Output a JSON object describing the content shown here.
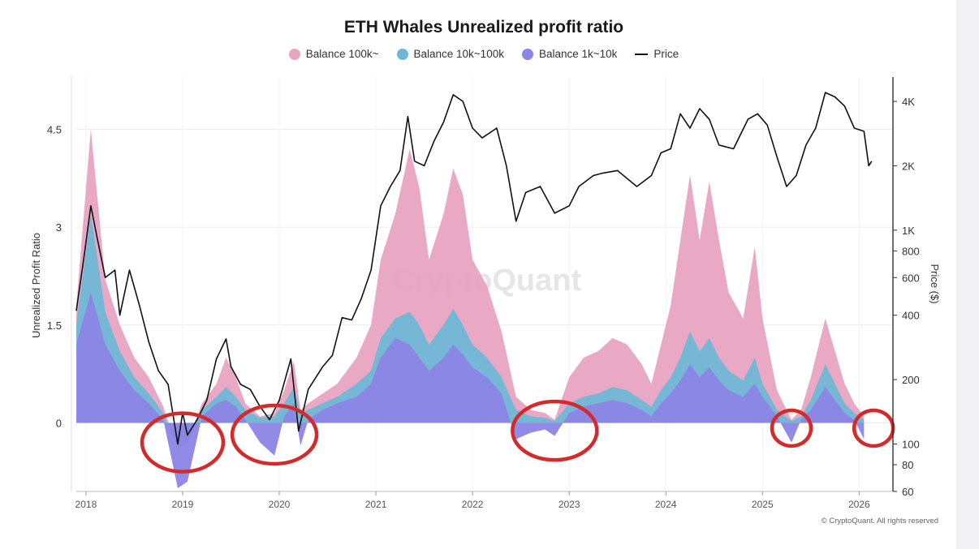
{
  "chart_data": {
    "type": "area",
    "title": "ETH Whales Unrealized profit ratio",
    "watermark": "CryptoQuant",
    "copyright": "© CryptoQuant. All rights reserved",
    "ylabel": "Unrealized Profit Ratio",
    "y2label": "Price ($)",
    "ylim": [
      -1.05,
      5.3
    ],
    "y2_scale": "log",
    "y2lim": [
      60,
      5200
    ],
    "x_ticks": [
      "2018",
      "2019",
      "2020",
      "2021",
      "2022",
      "2023",
      "2024",
      "2025",
      "2026"
    ],
    "y_ticks": [
      "0",
      "1.5",
      "3",
      "4.5"
    ],
    "y2_ticks": [
      "60",
      "80",
      "100",
      "200",
      "400",
      "600",
      "800",
      "1K",
      "2K",
      "4K"
    ],
    "grid": true,
    "legend_position": "top",
    "colors": {
      "balance_100k": "#e8a4c2",
      "balance_10k_100k": "#6fb7d6",
      "balance_1k_10k": "#8c84e6",
      "price": "#111111",
      "highlight_circle": "#d42a2a"
    },
    "series": [
      {
        "name": "Balance 100k~",
        "points": [
          [
            2017.9,
            1.8
          ],
          [
            2018.05,
            4.5
          ],
          [
            2018.2,
            2.2
          ],
          [
            2018.35,
            1.5
          ],
          [
            2018.5,
            1.0
          ],
          [
            2018.65,
            0.7
          ],
          [
            2018.8,
            0.25
          ],
          [
            2018.95,
            -0.4
          ],
          [
            2019.05,
            -0.3
          ],
          [
            2019.2,
            0.3
          ],
          [
            2019.35,
            0.6
          ],
          [
            2019.45,
            1.0
          ],
          [
            2019.55,
            0.7
          ],
          [
            2019.65,
            0.3
          ],
          [
            2019.8,
            0.1
          ],
          [
            2019.95,
            0.15
          ],
          [
            2020.05,
            0.5
          ],
          [
            2020.15,
            0.95
          ],
          [
            2020.22,
            0.2
          ],
          [
            2020.3,
            0.3
          ],
          [
            2020.45,
            0.45
          ],
          [
            2020.6,
            0.6
          ],
          [
            2020.8,
            1.0
          ],
          [
            2020.95,
            1.5
          ],
          [
            2021.05,
            2.5
          ],
          [
            2021.2,
            3.2
          ],
          [
            2021.35,
            4.2
          ],
          [
            2021.45,
            3.6
          ],
          [
            2021.55,
            2.5
          ],
          [
            2021.7,
            3.2
          ],
          [
            2021.8,
            3.9
          ],
          [
            2021.9,
            3.5
          ],
          [
            2022.0,
            2.5
          ],
          [
            2022.15,
            2.1
          ],
          [
            2022.3,
            1.4
          ],
          [
            2022.45,
            0.4
          ],
          [
            2022.6,
            0.2
          ],
          [
            2022.75,
            0.15
          ],
          [
            2022.85,
            0.05
          ],
          [
            2023.0,
            0.7
          ],
          [
            2023.15,
            1.0
          ],
          [
            2023.3,
            1.1
          ],
          [
            2023.45,
            1.3
          ],
          [
            2023.6,
            1.2
          ],
          [
            2023.75,
            0.9
          ],
          [
            2023.85,
            0.6
          ],
          [
            2023.95,
            1.2
          ],
          [
            2024.05,
            1.8
          ],
          [
            2024.15,
            2.8
          ],
          [
            2024.25,
            3.8
          ],
          [
            2024.35,
            2.8
          ],
          [
            2024.45,
            3.7
          ],
          [
            2024.55,
            2.8
          ],
          [
            2024.65,
            2.0
          ],
          [
            2024.8,
            1.6
          ],
          [
            2024.92,
            2.7
          ],
          [
            2025.0,
            1.6
          ],
          [
            2025.15,
            0.5
          ],
          [
            2025.3,
            0.05
          ],
          [
            2025.4,
            0.2
          ],
          [
            2025.5,
            0.7
          ],
          [
            2025.65,
            1.6
          ],
          [
            2025.75,
            1.1
          ],
          [
            2025.85,
            0.6
          ],
          [
            2025.95,
            0.3
          ],
          [
            2026.05,
            0.1
          ]
        ]
      },
      {
        "name": "Balance 10k~100k",
        "points": [
          [
            2017.9,
            1.5
          ],
          [
            2018.05,
            3.2
          ],
          [
            2018.2,
            1.7
          ],
          [
            2018.35,
            1.1
          ],
          [
            2018.5,
            0.7
          ],
          [
            2018.65,
            0.45
          ],
          [
            2018.8,
            0.15
          ],
          [
            2018.95,
            -0.4
          ],
          [
            2019.05,
            -0.3
          ],
          [
            2019.2,
            0.2
          ],
          [
            2019.35,
            0.4
          ],
          [
            2019.45,
            0.55
          ],
          [
            2019.55,
            0.4
          ],
          [
            2019.65,
            0.2
          ],
          [
            2019.8,
            0.08
          ],
          [
            2019.95,
            0.1
          ],
          [
            2020.05,
            0.3
          ],
          [
            2020.15,
            0.55
          ],
          [
            2020.22,
            0.15
          ],
          [
            2020.3,
            0.2
          ],
          [
            2020.45,
            0.3
          ],
          [
            2020.6,
            0.4
          ],
          [
            2020.8,
            0.6
          ],
          [
            2020.95,
            0.8
          ],
          [
            2021.05,
            1.3
          ],
          [
            2021.2,
            1.6
          ],
          [
            2021.35,
            1.7
          ],
          [
            2021.45,
            1.5
          ],
          [
            2021.55,
            1.2
          ],
          [
            2021.7,
            1.5
          ],
          [
            2021.8,
            1.75
          ],
          [
            2021.9,
            1.5
          ],
          [
            2022.0,
            1.2
          ],
          [
            2022.15,
            1.0
          ],
          [
            2022.3,
            0.7
          ],
          [
            2022.45,
            0.2
          ],
          [
            2022.6,
            0.1
          ],
          [
            2022.75,
            0.08
          ],
          [
            2022.85,
            0.03
          ],
          [
            2023.0,
            0.3
          ],
          [
            2023.15,
            0.4
          ],
          [
            2023.3,
            0.45
          ],
          [
            2023.45,
            0.55
          ],
          [
            2023.6,
            0.5
          ],
          [
            2023.75,
            0.35
          ],
          [
            2023.85,
            0.25
          ],
          [
            2023.95,
            0.5
          ],
          [
            2024.05,
            0.7
          ],
          [
            2024.15,
            1.0
          ],
          [
            2024.25,
            1.4
          ],
          [
            2024.35,
            1.1
          ],
          [
            2024.45,
            1.3
          ],
          [
            2024.55,
            1.0
          ],
          [
            2024.65,
            0.8
          ],
          [
            2024.8,
            0.65
          ],
          [
            2024.92,
            1.0
          ],
          [
            2025.0,
            0.6
          ],
          [
            2025.15,
            0.2
          ],
          [
            2025.3,
            0.03
          ],
          [
            2025.4,
            0.1
          ],
          [
            2025.5,
            0.35
          ],
          [
            2025.65,
            0.9
          ],
          [
            2025.75,
            0.6
          ],
          [
            2025.85,
            0.3
          ],
          [
            2025.95,
            0.15
          ],
          [
            2026.05,
            0.05
          ]
        ]
      },
      {
        "name": "Balance 1k~10k",
        "points": [
          [
            2017.9,
            1.2
          ],
          [
            2018.05,
            2.0
          ],
          [
            2018.2,
            1.2
          ],
          [
            2018.35,
            0.8
          ],
          [
            2018.5,
            0.5
          ],
          [
            2018.65,
            0.3
          ],
          [
            2018.8,
            0.05
          ],
          [
            2018.95,
            -1.0
          ],
          [
            2019.05,
            -0.9
          ],
          [
            2019.2,
            0.1
          ],
          [
            2019.35,
            0.3
          ],
          [
            2019.45,
            0.35
          ],
          [
            2019.55,
            0.25
          ],
          [
            2019.65,
            0.05
          ],
          [
            2019.8,
            -0.3
          ],
          [
            2019.95,
            -0.5
          ],
          [
            2020.05,
            0.1
          ],
          [
            2020.15,
            0.3
          ],
          [
            2020.22,
            -0.35
          ],
          [
            2020.3,
            0.05
          ],
          [
            2020.45,
            0.2
          ],
          [
            2020.6,
            0.3
          ],
          [
            2020.8,
            0.4
          ],
          [
            2020.95,
            0.6
          ],
          [
            2021.05,
            1.0
          ],
          [
            2021.2,
            1.3
          ],
          [
            2021.35,
            1.2
          ],
          [
            2021.45,
            1.0
          ],
          [
            2021.55,
            0.8
          ],
          [
            2021.7,
            1.0
          ],
          [
            2021.8,
            1.2
          ],
          [
            2021.9,
            1.05
          ],
          [
            2022.0,
            0.85
          ],
          [
            2022.15,
            0.7
          ],
          [
            2022.3,
            0.45
          ],
          [
            2022.45,
            -0.25
          ],
          [
            2022.6,
            -0.15
          ],
          [
            2022.75,
            -0.1
          ],
          [
            2022.85,
            -0.2
          ],
          [
            2023.0,
            0.15
          ],
          [
            2023.15,
            0.25
          ],
          [
            2023.3,
            0.3
          ],
          [
            2023.45,
            0.35
          ],
          [
            2023.6,
            0.3
          ],
          [
            2023.75,
            0.2
          ],
          [
            2023.85,
            0.1
          ],
          [
            2023.95,
            0.3
          ],
          [
            2024.05,
            0.45
          ],
          [
            2024.15,
            0.65
          ],
          [
            2024.25,
            0.9
          ],
          [
            2024.35,
            0.7
          ],
          [
            2024.45,
            0.85
          ],
          [
            2024.55,
            0.65
          ],
          [
            2024.65,
            0.5
          ],
          [
            2024.8,
            0.4
          ],
          [
            2024.92,
            0.6
          ],
          [
            2025.0,
            0.4
          ],
          [
            2025.15,
            0.1
          ],
          [
            2025.3,
            -0.3
          ],
          [
            2025.4,
            0.05
          ],
          [
            2025.5,
            0.2
          ],
          [
            2025.65,
            0.55
          ],
          [
            2025.75,
            0.35
          ],
          [
            2025.85,
            0.15
          ],
          [
            2025.95,
            0.05
          ],
          [
            2026.05,
            -0.25
          ]
        ]
      },
      {
        "name": "Price",
        "axis": "right",
        "points": [
          [
            2017.9,
            420
          ],
          [
            2017.98,
            750
          ],
          [
            2018.05,
            1300
          ],
          [
            2018.12,
            900
          ],
          [
            2018.2,
            600
          ],
          [
            2018.3,
            650
          ],
          [
            2018.35,
            400
          ],
          [
            2018.45,
            650
          ],
          [
            2018.55,
            450
          ],
          [
            2018.65,
            300
          ],
          [
            2018.75,
            220
          ],
          [
            2018.85,
            190
          ],
          [
            2018.95,
            100
          ],
          [
            2019.0,
            140
          ],
          [
            2019.05,
            110
          ],
          [
            2019.15,
            130
          ],
          [
            2019.25,
            160
          ],
          [
            2019.35,
            250
          ],
          [
            2019.45,
            310
          ],
          [
            2019.5,
            230
          ],
          [
            2019.6,
            190
          ],
          [
            2019.7,
            180
          ],
          [
            2019.8,
            150
          ],
          [
            2019.9,
            130
          ],
          [
            2020.0,
            160
          ],
          [
            2020.12,
            250
          ],
          [
            2020.2,
            115
          ],
          [
            2020.3,
            180
          ],
          [
            2020.45,
            230
          ],
          [
            2020.55,
            260
          ],
          [
            2020.65,
            390
          ],
          [
            2020.75,
            380
          ],
          [
            2020.85,
            480
          ],
          [
            2020.95,
            650
          ],
          [
            2021.05,
            1300
          ],
          [
            2021.15,
            1600
          ],
          [
            2021.25,
            1900
          ],
          [
            2021.33,
            3400
          ],
          [
            2021.4,
            2100
          ],
          [
            2021.5,
            2000
          ],
          [
            2021.6,
            2600
          ],
          [
            2021.7,
            3200
          ],
          [
            2021.8,
            4300
          ],
          [
            2021.9,
            4000
          ],
          [
            2022.0,
            3000
          ],
          [
            2022.1,
            2700
          ],
          [
            2022.25,
            3000
          ],
          [
            2022.35,
            2000
          ],
          [
            2022.45,
            1100
          ],
          [
            2022.55,
            1500
          ],
          [
            2022.7,
            1600
          ],
          [
            2022.85,
            1200
          ],
          [
            2023.0,
            1300
          ],
          [
            2023.1,
            1600
          ],
          [
            2023.25,
            1800
          ],
          [
            2023.35,
            1850
          ],
          [
            2023.5,
            1900
          ],
          [
            2023.7,
            1600
          ],
          [
            2023.85,
            1800
          ],
          [
            2023.95,
            2300
          ],
          [
            2024.05,
            2400
          ],
          [
            2024.15,
            3500
          ],
          [
            2024.25,
            3000
          ],
          [
            2024.35,
            3700
          ],
          [
            2024.45,
            3300
          ],
          [
            2024.55,
            2500
          ],
          [
            2024.7,
            2400
          ],
          [
            2024.85,
            3300
          ],
          [
            2024.95,
            3500
          ],
          [
            2025.05,
            3100
          ],
          [
            2025.15,
            2200
          ],
          [
            2025.25,
            1600
          ],
          [
            2025.35,
            1800
          ],
          [
            2025.45,
            2500
          ],
          [
            2025.55,
            3000
          ],
          [
            2025.65,
            4400
          ],
          [
            2025.75,
            4200
          ],
          [
            2025.85,
            3800
          ],
          [
            2025.95,
            3000
          ],
          [
            2026.05,
            2900
          ],
          [
            2026.1,
            2000
          ],
          [
            2026.13,
            2100
          ]
        ]
      }
    ],
    "highlight_circles": [
      {
        "x": 2019.0,
        "y": -0.3
      },
      {
        "x": 2019.95,
        "y": -0.18
      },
      {
        "x": 2022.85,
        "y": -0.12
      },
      {
        "x": 2025.3,
        "y": -0.08
      },
      {
        "x": 2026.15,
        "y": -0.08
      }
    ]
  }
}
